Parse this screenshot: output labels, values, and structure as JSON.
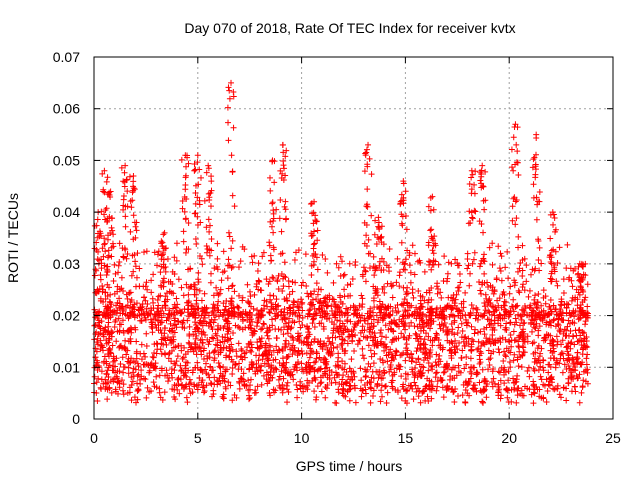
{
  "chart_data": {
    "type": "scatter",
    "title": "Day 070 of 2018, Rate Of TEC Index for receiver kvtx",
    "xlabel": "GPS time / hours",
    "ylabel": "ROTI / TECUs",
    "xlim": [
      0,
      25
    ],
    "ylim": [
      0,
      0.07
    ],
    "xticks": [
      0,
      5,
      10,
      15,
      20,
      25
    ],
    "yticks": [
      0,
      0.01,
      0.02,
      0.03,
      0.04,
      0.05,
      0.06,
      0.07
    ],
    "xtick_labels": [
      "0",
      "5",
      "10",
      "15",
      "20",
      "25"
    ],
    "ytick_labels": [
      "0",
      "0.01",
      "0.02",
      "0.03",
      "0.04",
      "0.05",
      "0.06",
      "0.07"
    ],
    "grid": true,
    "marker": "+",
    "color": "#ff0000",
    "series": [
      {
        "name": "ROTI",
        "x_range": [
          0,
          23.8
        ],
        "baseline_range": [
          0.005,
          0.022
        ],
        "peaks": [
          {
            "x": 0.2,
            "y": 0.04
          },
          {
            "x": 0.5,
            "y": 0.048
          },
          {
            "x": 0.8,
            "y": 0.044
          },
          {
            "x": 1.5,
            "y": 0.049
          },
          {
            "x": 1.9,
            "y": 0.047
          },
          {
            "x": 3.4,
            "y": 0.036
          },
          {
            "x": 4.4,
            "y": 0.051
          },
          {
            "x": 5.0,
            "y": 0.051
          },
          {
            "x": 5.5,
            "y": 0.049
          },
          {
            "x": 6.6,
            "y": 0.065
          },
          {
            "x": 8.6,
            "y": 0.05
          },
          {
            "x": 9.1,
            "y": 0.053
          },
          {
            "x": 10.6,
            "y": 0.042
          },
          {
            "x": 13.2,
            "y": 0.053
          },
          {
            "x": 13.7,
            "y": 0.039
          },
          {
            "x": 14.9,
            "y": 0.046
          },
          {
            "x": 16.3,
            "y": 0.043
          },
          {
            "x": 18.2,
            "y": 0.048
          },
          {
            "x": 18.7,
            "y": 0.049
          },
          {
            "x": 20.3,
            "y": 0.057
          },
          {
            "x": 21.3,
            "y": 0.055
          },
          {
            "x": 22.1,
            "y": 0.04
          },
          {
            "x": 23.5,
            "y": 0.03
          }
        ]
      }
    ]
  }
}
